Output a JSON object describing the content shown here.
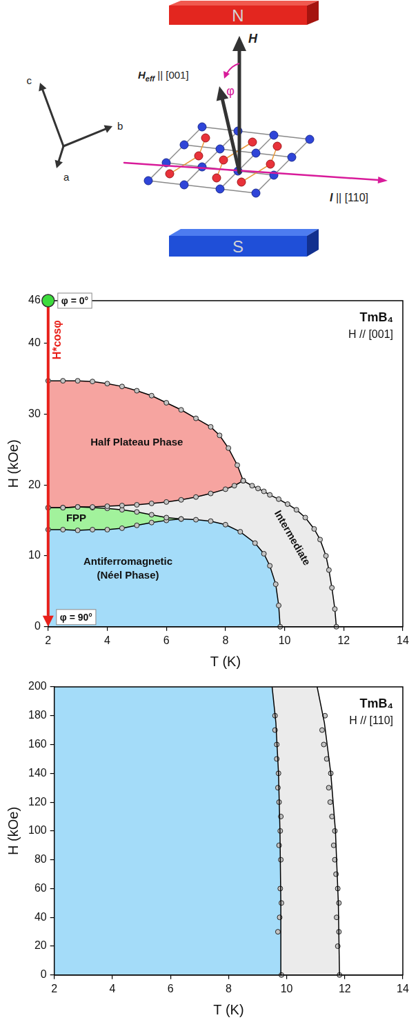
{
  "diagram": {
    "magnet_top": "N",
    "magnet_bottom": "S",
    "field": "H",
    "effective_field": {
      "symbol": "H",
      "subscript": "eff",
      "text": " || [001]"
    },
    "angle": "φ",
    "current": {
      "symbol": "I",
      "text": " || [110]"
    },
    "axes": [
      "c",
      "b",
      "a"
    ]
  },
  "chart_data": [
    {
      "type": "line",
      "title": "TmB₄",
      "subtitle": "H // [001]",
      "x_label": "T (K)",
      "y_label": "H (kOe)",
      "xlim": [
        2,
        14
      ],
      "xticks": [
        2,
        4,
        6,
        8,
        10,
        12,
        14
      ],
      "ylim": [
        0,
        46
      ],
      "yticks": [
        0,
        10,
        20,
        30,
        40,
        46
      ],
      "grid": false,
      "boundaries": [
        {
          "x": [
            2,
            2.5,
            3,
            3.5,
            4,
            4.5,
            5,
            5.5,
            6,
            6.5,
            7,
            7.5,
            7.8,
            8.1,
            8.4,
            8.6
          ],
          "y": [
            34.7,
            34.7,
            34.7,
            34.6,
            34.3,
            33.9,
            33.3,
            32.6,
            31.6,
            30.6,
            29.4,
            28.2,
            27.0,
            25.2,
            22.8,
            20.6
          ],
          "color": "#000000",
          "marker": "circle",
          "line_style": "solid"
        },
        {
          "x": [
            8.6,
            8.9,
            9.1,
            9.3,
            9.5,
            9.8,
            10.1,
            10.4,
            10.7,
            11.0,
            11.2,
            11.4,
            11.5,
            11.6,
            11.7,
            11.75
          ],
          "y": [
            20.6,
            19.9,
            19.5,
            19.1,
            18.6,
            18.0,
            17.3,
            16.5,
            15.4,
            13.8,
            12.3,
            10.0,
            8.0,
            5.5,
            2.5,
            0
          ],
          "color": "#000000",
          "marker": "circle",
          "line_style": "solid"
        },
        {
          "x": [
            2,
            2.5,
            3,
            3.5,
            4,
            4.5,
            5,
            5.5,
            6,
            6.5,
            7,
            7.5,
            8,
            8.3,
            8.6
          ],
          "y": [
            16.8,
            16.8,
            16.9,
            16.9,
            17.0,
            17.1,
            17.2,
            17.4,
            17.6,
            17.9,
            18.3,
            18.8,
            19.4,
            19.9,
            20.6
          ],
          "color": "#000000",
          "marker": "circle",
          "line_style": "solid"
        },
        {
          "x": [
            2,
            2.5,
            3,
            3.5,
            4,
            4.5,
            5,
            5.5,
            6,
            6.5
          ],
          "y": [
            16.8,
            16.8,
            16.9,
            16.8,
            16.7,
            16.5,
            16.2,
            15.8,
            15.4,
            15.2
          ],
          "color": "#000000",
          "marker": "circle",
          "line_style": "solid"
        },
        {
          "x": [
            2,
            2.5,
            3,
            3.5,
            4,
            4.5,
            5,
            5.5,
            6,
            6.5,
            7,
            7.5,
            8,
            8.5,
            9,
            9.3,
            9.5,
            9.7,
            9.8,
            9.85
          ],
          "y": [
            13.7,
            13.7,
            13.6,
            13.7,
            13.7,
            13.9,
            14.3,
            14.7,
            15.0,
            15.2,
            15.1,
            14.9,
            14.4,
            13.4,
            11.8,
            10.3,
            8.6,
            6.0,
            3.0,
            0
          ],
          "color": "#000000",
          "marker": "circle",
          "line_style": "solid"
        }
      ],
      "regions": [
        {
          "label": "Half Plateau Phase",
          "color": "#f6a4a0",
          "outline": [
            0
          ]
        },
        {
          "label": "Intermediate",
          "color": "#ebebeb",
          "outline": [
            2,
            1
          ]
        },
        {
          "label": "FPP",
          "color": "#a2f29c",
          "outline": [
            3
          ]
        },
        {
          "label": [
            "Antiferromagnetic",
            "(Néel Phase)"
          ],
          "color": "#a4dcf9",
          "outline": [
            4
          ]
        }
      ],
      "annotations": {
        "arrow": {
          "x": [
            2,
            2
          ],
          "y": [
            46,
            0
          ],
          "label": "H*cosφ",
          "color": "#e8201a"
        },
        "start": {
          "x": 2,
          "y": 46,
          "label": "φ = 0°",
          "color": "#3ddc3d"
        },
        "end": {
          "x": 2,
          "y": 0,
          "label": "φ = 90°"
        }
      }
    },
    {
      "type": "line",
      "title": "TmB₄",
      "subtitle": "H // [110]",
      "x_label": "T (K)",
      "y_label": "H (kOe)",
      "xlim": [
        2,
        14
      ],
      "xticks": [
        2,
        4,
        6,
        8,
        10,
        12,
        14
      ],
      "ylim": [
        0,
        200
      ],
      "yticks": [
        0,
        20,
        40,
        60,
        80,
        100,
        120,
        140,
        160,
        180,
        200
      ],
      "grid": false,
      "boundaries": [
        {
          "x": [
            9.82,
            9.8,
            9.77,
            9.72,
            9.63,
            9.5
          ],
          "y": [
            0,
            50,
            100,
            140,
            175,
            200
          ],
          "color": "#000000",
          "marker": "none",
          "line_style": "solid"
        },
        {
          "x": [
            11.82,
            11.78,
            11.68,
            11.52,
            11.3,
            11.05
          ],
          "y": [
            0,
            50,
            100,
            140,
            175,
            200
          ],
          "color": "#000000",
          "marker": "none",
          "line_style": "solid"
        },
        {
          "x": [
            9.82,
            9.7,
            9.76,
            9.82,
            9.78,
            9.8,
            9.74,
            9.78,
            9.8,
            9.74,
            9.7,
            9.72,
            9.66,
            9.66,
            9.6,
            9.6
          ],
          "y": [
            0,
            30,
            40,
            50,
            60,
            80,
            90,
            100,
            110,
            120,
            130,
            140,
            150,
            160,
            170,
            180
          ],
          "color": "#000000",
          "marker": "circle",
          "line_style": "none"
        },
        {
          "x": [
            11.82,
            11.76,
            11.8,
            11.72,
            11.8,
            11.76,
            11.7,
            11.66,
            11.62,
            11.66,
            11.56,
            11.5,
            11.45,
            11.52,
            11.38,
            11.28,
            11.22,
            11.32
          ],
          "y": [
            0,
            20,
            30,
            40,
            50,
            60,
            70,
            80,
            90,
            100,
            110,
            120,
            130,
            140,
            150,
            160,
            170,
            180
          ],
          "color": "#000000",
          "marker": "circle",
          "line_style": "none"
        }
      ],
      "regions": [
        {
          "color": "#ebebeb",
          "outline": [
            1
          ]
        },
        {
          "color": "#a4dcf9",
          "outline": [
            0
          ]
        }
      ]
    }
  ]
}
